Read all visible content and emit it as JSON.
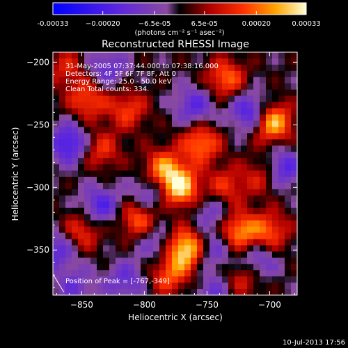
{
  "chart_data": {
    "type": "heatmap",
    "title": "Reconstructed RHESSI Image",
    "xlabel": "Heliocentric X (arcsec)",
    "ylabel": "Heliocentric Y (arcsec)",
    "xlim": [
      -873,
      -678
    ],
    "ylim": [
      -386,
      -192
    ],
    "xticks": [
      -850,
      -800,
      -750,
      -700
    ],
    "yticks": [
      -200,
      -250,
      -300,
      -350
    ],
    "colorbar": {
      "min": -0.00033,
      "max": 0.00033,
      "ticks": [
        -0.00033,
        -0.0002,
        -6.5e-05,
        6.5e-05,
        0.0002,
        0.00033
      ],
      "tick_labels": [
        "-0.00033",
        "−0.00020",
        "−6.5e-05",
        "6.5e-05",
        "0.00020",
        "0.00033"
      ],
      "unit_label": "(photons cm⁻² s⁻¹ asec⁻²)"
    },
    "annotations": [
      "31-May-2005 07:37:44.000 to 07:38:16.000",
      "Detectors: 4F 5F 6F 7F 8F, Att 0",
      "Energy Range: 25.0 - 50.0 keV",
      "Clean    Total counts: 334."
    ],
    "peak": {
      "x": -767,
      "y": -349,
      "label": "Position of Peak = [-767,-349]"
    },
    "sources": [
      {
        "x": -767,
        "y": -349,
        "value": 0.00033
      },
      {
        "x": -772,
        "y": -300,
        "value": 0.00031
      },
      {
        "x": -785,
        "y": -285,
        "value": 0.00022
      },
      {
        "x": -755,
        "y": -265,
        "value": 0.00022
      },
      {
        "x": -698,
        "y": -248,
        "value": 0.0003
      },
      {
        "x": -735,
        "y": -213,
        "value": 0.0002
      },
      {
        "x": -845,
        "y": -230,
        "value": 0.00018
      },
      {
        "x": -813,
        "y": -238,
        "value": 0.00016
      },
      {
        "x": -835,
        "y": -270,
        "value": 0.00015
      },
      {
        "x": -805,
        "y": -325,
        "value": 0.0002
      },
      {
        "x": -850,
        "y": -335,
        "value": 0.00016
      },
      {
        "x": -725,
        "y": -335,
        "value": 0.00024
      },
      {
        "x": -700,
        "y": -335,
        "value": 0.00018
      },
      {
        "x": -735,
        "y": -300,
        "value": 0.00015
      },
      {
        "x": -780,
        "y": -370,
        "value": 0.00018
      },
      {
        "x": -720,
        "y": -372,
        "value": 0.00015
      },
      {
        "x": -705,
        "y": -290,
        "value": 0.00014
      },
      {
        "x": -862,
        "y": -205,
        "value": 0.00012
      },
      {
        "x": -860,
        "y": -265,
        "value": -0.00022
      },
      {
        "x": -835,
        "y": -315,
        "value": -0.00018
      },
      {
        "x": -795,
        "y": -305,
        "value": -0.00015
      },
      {
        "x": -760,
        "y": -235,
        "value": -0.00016
      },
      {
        "x": -830,
        "y": -205,
        "value": -0.00014
      },
      {
        "x": -715,
        "y": -240,
        "value": -0.00022
      },
      {
        "x": -690,
        "y": -285,
        "value": -0.0002
      },
      {
        "x": -745,
        "y": -320,
        "value": -0.00012
      },
      {
        "x": -745,
        "y": -350,
        "value": -0.00014
      },
      {
        "x": -710,
        "y": -360,
        "value": -0.00016
      },
      {
        "x": -870,
        "y": -350,
        "value": -0.00016
      },
      {
        "x": -815,
        "y": -375,
        "value": -0.00014
      },
      {
        "x": -855,
        "y": -380,
        "value": -0.00012
      },
      {
        "x": -745,
        "y": -385,
        "value": -0.00012
      },
      {
        "x": -790,
        "y": -345,
        "value": -0.00012
      }
    ]
  },
  "footer": {
    "date": "10-Jul-2013 17:56"
  }
}
